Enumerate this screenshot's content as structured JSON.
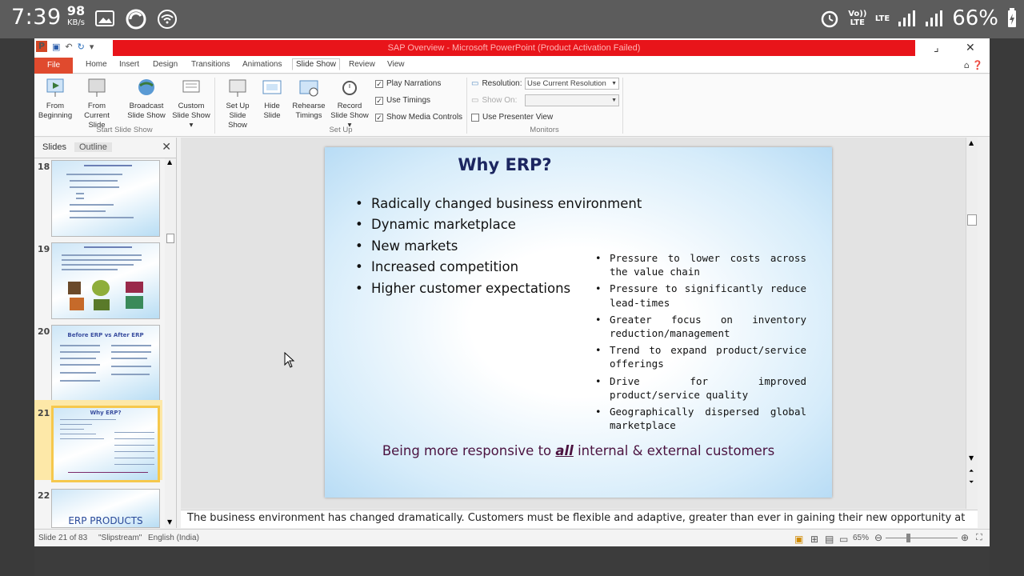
{
  "phone_status": {
    "time": "7:39",
    "net_speed": "98",
    "net_unit": "KB/s",
    "volte": "Vo)) LTE",
    "lte": "LTE",
    "battery": "66%"
  },
  "window": {
    "title": "SAP Overview - Microsoft PowerPoint (Product Activation Failed)"
  },
  "tabs": [
    "File",
    "Home",
    "Insert",
    "Design",
    "Transitions",
    "Animations",
    "Slide Show",
    "Review",
    "View"
  ],
  "active_tab": "Slide Show",
  "ribbon": {
    "from_beginning": "From Beginning",
    "from_current": "From Current Slide",
    "broadcast": "Broadcast Slide Show",
    "custom": "Custom Slide Show ▾",
    "group_start": "Start Slide Show",
    "setup": "Set Up Slide Show",
    "hide": "Hide Slide",
    "rehearse": "Rehearse Timings",
    "record": "Record Slide Show ▾",
    "group_setup": "Set Up",
    "play_narrations": "Play Narrations",
    "use_timings": "Use Timings",
    "show_media": "Show Media Controls",
    "resolution_label": "Resolution:",
    "resolution_value": "Use Current Resolution",
    "show_on_label": "Show On:",
    "presenter_view": "Use Presenter View",
    "group_monitors": "Monitors"
  },
  "left_panel": {
    "tab_slides": "Slides",
    "tab_outline": "Outline",
    "thumb_numbers": [
      "18",
      "19",
      "20",
      "21",
      "22"
    ],
    "thumb20_title": "Before ERP vs After ERP",
    "thumb21_title": "Why ERP?",
    "thumb22_title": "ERP PRODUCTS"
  },
  "slide": {
    "title": "Why ERP?",
    "left_bullets": [
      "Radically changed business environment",
      "Dynamic marketplace",
      "New markets",
      "Increased competition",
      "Higher customer expectations"
    ],
    "right_bullets": [
      "Pressure to lower costs across the value chain",
      "Pressure to significantly reduce lead-times",
      "Greater focus on inventory reduction/management",
      "Trend to expand product/service offerings",
      "Drive for improved product/service quality",
      "Geographically dispersed global marketplace"
    ],
    "footer_before": "Being more responsive to ",
    "footer_em": "all",
    "footer_after": " internal & external customers"
  },
  "notes": "The business environment has changed dramatically. Customers must be flexible and adaptive, greater than ever in gaining their new opportunity at",
  "statusbar": {
    "slide_info": "Slide 21 of 83",
    "theme": "\"Slipstream\"",
    "language": "English (India)",
    "zoom": "65%"
  }
}
